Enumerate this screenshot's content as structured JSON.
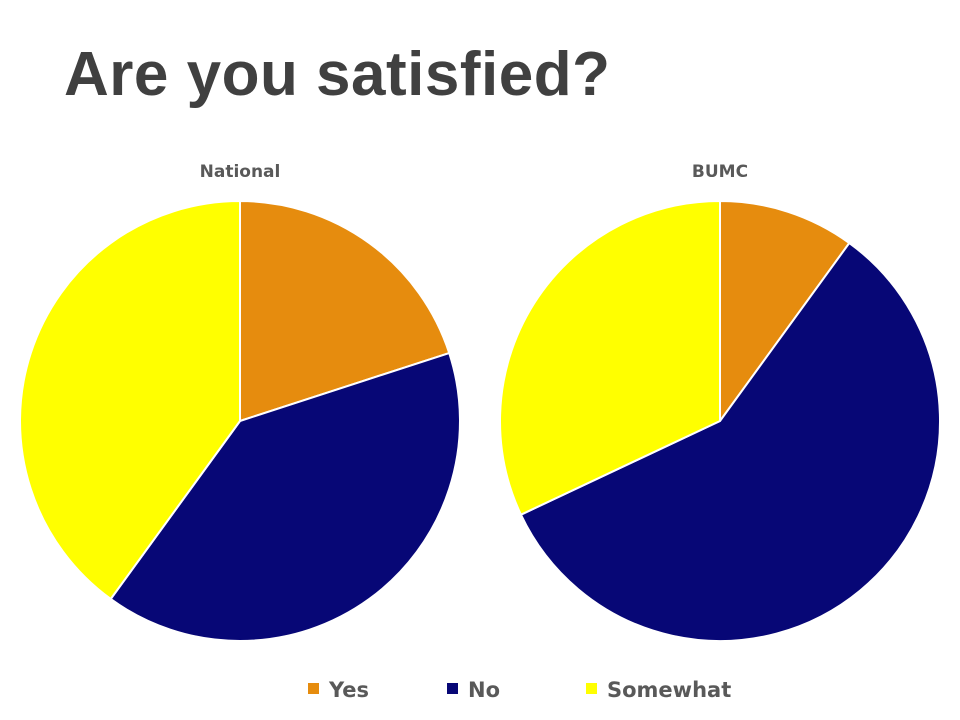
{
  "slide": {
    "title": "Are you satisfied?"
  },
  "colors": {
    "Yes": "#e68c0e",
    "No": "#070776",
    "Somewhat": "#ffff00",
    "text": "#595959",
    "title": "#404040"
  },
  "legend": [
    "Yes",
    "No",
    "Somewhat"
  ],
  "chart_data": [
    {
      "type": "pie",
      "title": "National",
      "categories": [
        "Yes",
        "No",
        "Somewhat"
      ],
      "values": [
        20,
        40,
        40
      ],
      "legend_position": "bottom"
    },
    {
      "type": "pie",
      "title": "BUMC",
      "categories": [
        "Yes",
        "No",
        "Somewhat"
      ],
      "values": [
        10,
        58,
        32
      ],
      "legend_position": "bottom"
    }
  ]
}
